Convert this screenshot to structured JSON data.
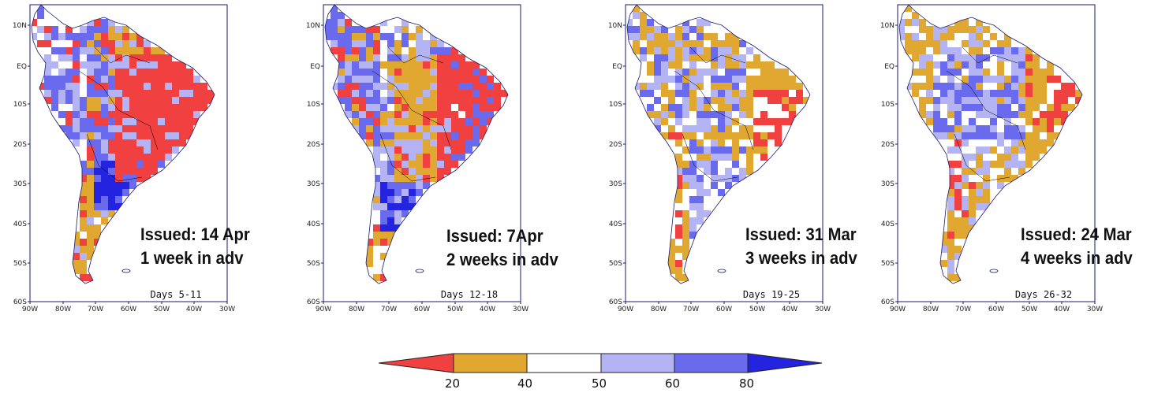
{
  "colors": {
    "red": "#f04040",
    "orange": "#e0a830",
    "white": "#ffffff",
    "light_blue": "#b4b4f4",
    "mid_blue": "#6a6aee",
    "blue": "#2424e0",
    "frame": "#1a1a6a"
  },
  "axes": {
    "lat_ticks": [
      "10N",
      "EQ",
      "10S",
      "20S",
      "30S",
      "40S",
      "50S",
      "60S"
    ],
    "lon_ticks": [
      "90W",
      "80W",
      "70W",
      "60W",
      "50W",
      "40W",
      "30W"
    ]
  },
  "panels": [
    {
      "days": "Days 5-11",
      "issued": "Issued: 14 Apr",
      "lead": "1 week in adv"
    },
    {
      "days": "Days 12-18",
      "issued": "Issued: 7Apr",
      "lead": "2 weeks in adv"
    },
    {
      "days": "Days 19-25",
      "issued": "Issued: 31 Mar",
      "lead": "3 weeks in adv"
    },
    {
      "days": "Days 26-32",
      "issued": "Issued: 24 Mar",
      "lead": "4 weeks in adv"
    }
  ],
  "colorbar": {
    "labels": [
      "20",
      "40",
      "50",
      "60",
      "80"
    ]
  }
}
